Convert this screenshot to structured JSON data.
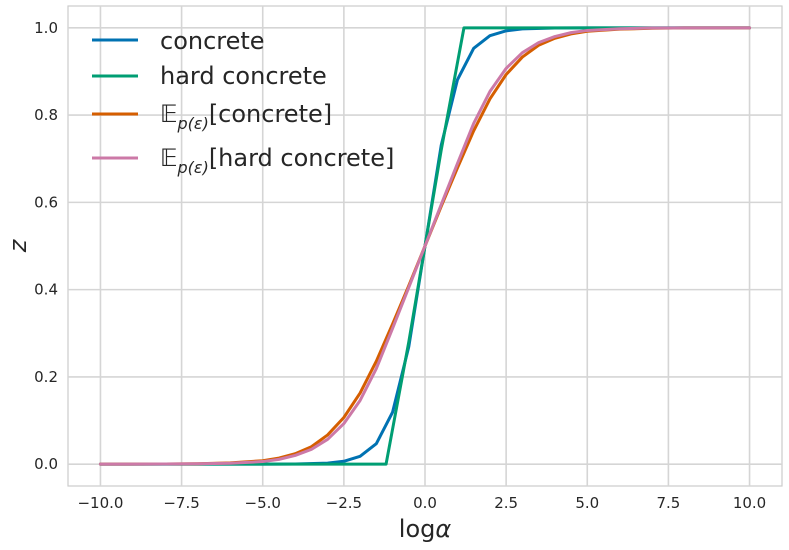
{
  "chart_data": {
    "type": "line",
    "xlabel": "log",
    "xlabel_symbol": "α",
    "ylabel": "z",
    "xlim": [
      -11.0,
      11.0
    ],
    "ylim": [
      -0.05,
      1.05
    ],
    "xticks": [
      -10.0,
      -7.5,
      -5.0,
      -2.5,
      0.0,
      2.5,
      5.0,
      7.5,
      10.0
    ],
    "xtick_labels": [
      "−10.0",
      "−7.5",
      "−5.0",
      "−2.5",
      "0.0",
      "2.5",
      "5.0",
      "7.5",
      "10.0"
    ],
    "yticks": [
      0.0,
      0.2,
      0.4,
      0.6,
      0.8,
      1.0
    ],
    "ytick_labels": [
      "0.0",
      "0.2",
      "0.4",
      "0.6",
      "0.8",
      "1.0"
    ],
    "grid": true,
    "legend_position": "top-left",
    "series": [
      {
        "name": "concrete",
        "color": "#0072b2",
        "x": [
          -10,
          -8,
          -6,
          -5,
          -4,
          -3,
          -2.5,
          -2,
          -1.5,
          -1,
          -0.5,
          0,
          0.5,
          1,
          1.5,
          2,
          2.5,
          3,
          4,
          5,
          6,
          8,
          10
        ],
        "y": [
          0.0,
          0.0,
          0.0,
          0.0001,
          0.0005,
          0.0025,
          0.0067,
          0.018,
          0.047,
          0.119,
          0.269,
          0.5,
          0.731,
          0.881,
          0.953,
          0.982,
          0.993,
          0.9975,
          0.9995,
          0.9999,
          1.0,
          1.0,
          1.0
        ]
      },
      {
        "name": "hard concrete",
        "color": "#009e73",
        "x": [
          -10,
          -5,
          -2,
          -1.2,
          -1.0,
          -0.75,
          -0.5,
          -0.25,
          0,
          0.25,
          0.5,
          0.75,
          1.0,
          1.2,
          2,
          5,
          10
        ],
        "y": [
          0.0,
          0.0,
          0.0,
          0.0,
          0.08,
          0.18,
          0.28,
          0.39,
          0.5,
          0.61,
          0.72,
          0.82,
          0.92,
          1.0,
          1.0,
          1.0,
          1.0
        ]
      },
      {
        "name": "[concrete]",
        "name_prefix": "𝔼",
        "name_sub": "p(ε)",
        "color": "#d55e00",
        "x": [
          -10,
          -8,
          -7,
          -6,
          -5,
          -4.5,
          -4,
          -3.5,
          -3,
          -2.5,
          -2,
          -1.5,
          -1,
          -0.5,
          0,
          0.5,
          1,
          1.5,
          2,
          2.5,
          3,
          3.5,
          4,
          4.5,
          5,
          6,
          7,
          8,
          10
        ],
        "y": [
          0.0,
          0.0005,
          0.001,
          0.003,
          0.008,
          0.014,
          0.024,
          0.04,
          0.067,
          0.107,
          0.163,
          0.236,
          0.321,
          0.409,
          0.5,
          0.591,
          0.679,
          0.764,
          0.837,
          0.893,
          0.933,
          0.96,
          0.976,
          0.986,
          0.992,
          0.997,
          0.999,
          1.0,
          1.0
        ]
      },
      {
        "name": "[hard concrete]",
        "name_prefix": "𝔼",
        "name_sub": "p(ε)",
        "color": "#cc79a7",
        "x": [
          -10,
          -8,
          -7,
          -6,
          -5,
          -4.5,
          -4,
          -3.5,
          -3,
          -2.5,
          -2,
          -1.5,
          -1,
          -0.5,
          0,
          0.5,
          1,
          1.5,
          2,
          2.5,
          3,
          3.5,
          4,
          4.5,
          5,
          6,
          7,
          8,
          10
        ],
        "y": [
          0.0,
          0.0004,
          0.001,
          0.002,
          0.006,
          0.011,
          0.02,
          0.034,
          0.057,
          0.093,
          0.146,
          0.219,
          0.311,
          0.405,
          0.5,
          0.595,
          0.689,
          0.781,
          0.854,
          0.907,
          0.943,
          0.966,
          0.98,
          0.989,
          0.994,
          0.998,
          0.9995,
          1.0,
          1.0
        ]
      }
    ]
  }
}
